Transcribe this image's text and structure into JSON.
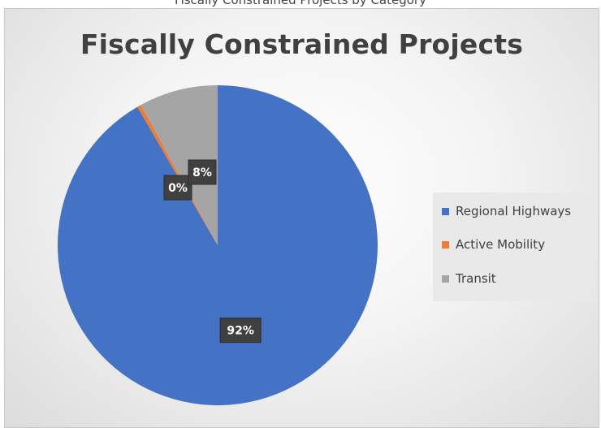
{
  "top_caption": "Fiscally Constrained Projects by Category",
  "chart_data": {
    "type": "pie",
    "title": "Fiscally Constrained Projects",
    "categories": [
      "Regional Highways",
      "Active Mobility",
      "Transit"
    ],
    "values": [
      92,
      0.4,
      8
    ],
    "data_labels": [
      "92%",
      "0%",
      "8%"
    ],
    "colors": [
      "#4472c4",
      "#ed7d31",
      "#a5a5a5"
    ],
    "legend_position": "right"
  }
}
